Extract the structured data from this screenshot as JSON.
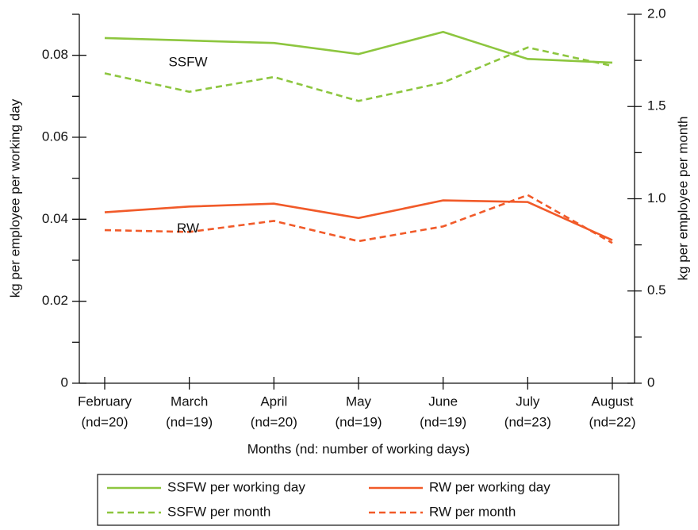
{
  "chart_data": {
    "type": "line",
    "y_label": "kg per employee per working day",
    "y2_label": "kg per employee per month",
    "x_label": "Months (nd: number of working days)",
    "categories": [
      [
        "February",
        "(nd=20)"
      ],
      [
        "March",
        "(nd=19)"
      ],
      [
        "April",
        "(nd=20)"
      ],
      [
        "May",
        "(nd=19)"
      ],
      [
        "June",
        "(nd=19)"
      ],
      [
        "July",
        "(nd=23)"
      ],
      [
        "August",
        "(nd=22)"
      ]
    ],
    "ylim": [
      0,
      0.09
    ],
    "yticks": [
      0,
      0.02,
      0.04,
      0.06,
      0.08
    ],
    "yminorticks": [
      0.01,
      0.03,
      0.05,
      0.07,
      0.09
    ],
    "y2lim": [
      0,
      2
    ],
    "y2ticks": [
      0,
      0.5,
      {
        "value": 1,
        "label": "1.0"
      },
      1.5,
      {
        "value": 2,
        "label": "2.0"
      }
    ],
    "y2minorticks": [
      0.25,
      0.75,
      1.25,
      1.75
    ],
    "annotations": [
      {
        "text": "SSFW",
        "series": 0
      },
      {
        "text": "RW",
        "series": 1
      }
    ],
    "series": [
      {
        "name": "SSFW per working day",
        "color": "#8dc63f",
        "dashed": false,
        "values": [
          0.0842,
          0.0836,
          0.083,
          0.0803,
          0.0857,
          0.0791,
          0.0782
        ]
      },
      {
        "name": "RW per working day",
        "color": "#f15a29",
        "dashed": false,
        "values": [
          0.0417,
          0.0431,
          0.0438,
          0.0403,
          0.0446,
          0.0442,
          0.0349
        ]
      },
      {
        "name": "SSFW per month",
        "color": "#8dc63f",
        "dashed": true,
        "axis": "y2",
        "values": [
          1.68,
          1.58,
          1.66,
          1.53,
          1.63,
          1.82,
          1.72
        ]
      },
      {
        "name": "RW per month",
        "color": "#f15a29",
        "dashed": true,
        "axis": "y2",
        "values": [
          0.83,
          0.82,
          0.88,
          0.77,
          0.85,
          1.02,
          0.76
        ]
      }
    ]
  }
}
